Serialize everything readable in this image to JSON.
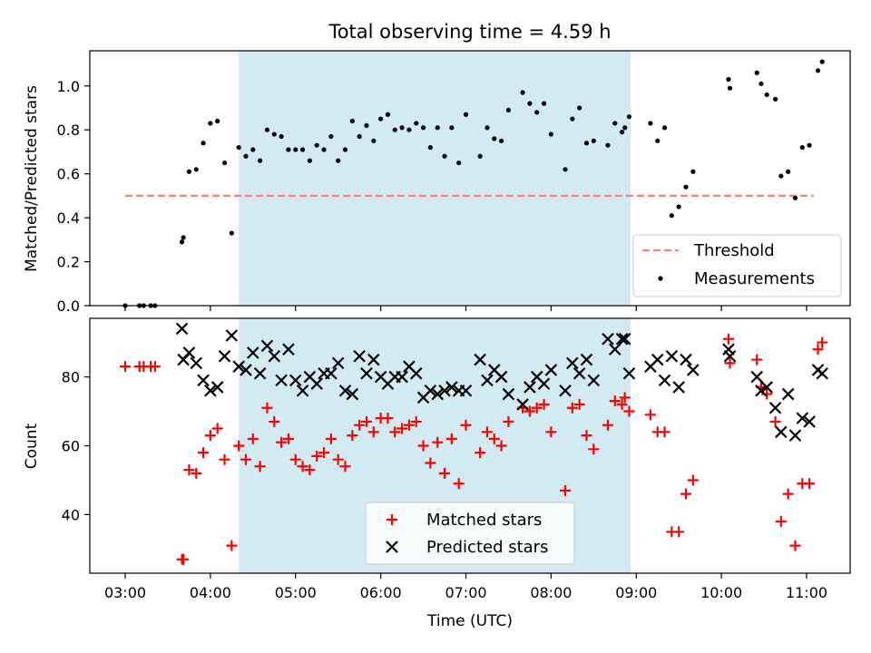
{
  "chart_data": [
    {
      "type": "scatter",
      "title": "Total observing time = 4.59 h",
      "xlabel": "",
      "ylabel": "Matched/Predicted stars",
      "ylim": [
        0.0,
        1.16
      ],
      "yticks": [
        "0.0",
        "0.2",
        "0.4",
        "0.6",
        "0.8",
        "1.0"
      ],
      "shaded_interval": [
        "04:20",
        "08:56"
      ],
      "shade_color": "#add8e6",
      "legend_position": "lower right",
      "threshold": {
        "name": "Threshold",
        "value": 0.5,
        "x_range": [
          "03:00",
          "11:05"
        ],
        "color": "#ff7f7f"
      },
      "series": [
        {
          "name": "Measurements",
          "color": "#000000",
          "points": [
            [
              "03:00",
              0.0
            ],
            [
              "03:10",
              0.0
            ],
            [
              "03:13",
              0.0
            ],
            [
              "03:18",
              0.0
            ],
            [
              "03:21",
              0.0
            ],
            [
              "03:40",
              0.29
            ],
            [
              "03:41",
              0.31
            ],
            [
              "03:45",
              0.61
            ],
            [
              "03:50",
              0.62
            ],
            [
              "03:55",
              0.74
            ],
            [
              "04:00",
              0.83
            ],
            [
              "04:05",
              0.84
            ],
            [
              "04:10",
              0.65
            ],
            [
              "04:15",
              0.33
            ],
            [
              "04:20",
              0.72
            ],
            [
              "04:25",
              0.68
            ],
            [
              "04:30",
              0.71
            ],
            [
              "04:35",
              0.66
            ],
            [
              "04:40",
              0.8
            ],
            [
              "04:45",
              0.78
            ],
            [
              "04:50",
              0.77
            ],
            [
              "04:55",
              0.71
            ],
            [
              "05:00",
              0.71
            ],
            [
              "05:05",
              0.71
            ],
            [
              "05:10",
              0.66
            ],
            [
              "05:15",
              0.73
            ],
            [
              "05:20",
              0.71
            ],
            [
              "05:25",
              0.77
            ],
            [
              "05:30",
              0.66
            ],
            [
              "05:35",
              0.71
            ],
            [
              "05:40",
              0.84
            ],
            [
              "05:45",
              0.77
            ],
            [
              "05:50",
              0.82
            ],
            [
              "05:55",
              0.75
            ],
            [
              "06:00",
              0.85
            ],
            [
              "06:05",
              0.87
            ],
            [
              "06:10",
              0.8
            ],
            [
              "06:15",
              0.81
            ],
            [
              "06:20",
              0.8
            ],
            [
              "06:25",
              0.83
            ],
            [
              "06:30",
              0.81
            ],
            [
              "06:35",
              0.72
            ],
            [
              "06:40",
              0.81
            ],
            [
              "06:45",
              0.68
            ],
            [
              "06:50",
              0.81
            ],
            [
              "06:55",
              0.65
            ],
            [
              "07:00",
              0.87
            ],
            [
              "07:10",
              0.68
            ],
            [
              "07:15",
              0.81
            ],
            [
              "07:20",
              0.76
            ],
            [
              "07:25",
              0.75
            ],
            [
              "07:30",
              0.89
            ],
            [
              "07:40",
              0.97
            ],
            [
              "07:45",
              0.92
            ],
            [
              "07:50",
              0.88
            ],
            [
              "07:55",
              0.92
            ],
            [
              "08:00",
              0.78
            ],
            [
              "08:10",
              0.62
            ],
            [
              "08:15",
              0.85
            ],
            [
              "08:20",
              0.9
            ],
            [
              "08:25",
              0.74
            ],
            [
              "08:30",
              0.75
            ],
            [
              "08:40",
              0.73
            ],
            [
              "08:45",
              0.83
            ],
            [
              "08:50",
              0.79
            ],
            [
              "08:52",
              0.81
            ],
            [
              "08:55",
              0.86
            ],
            [
              "09:10",
              0.83
            ],
            [
              "09:15",
              0.75
            ],
            [
              "09:20",
              0.81
            ],
            [
              "09:25",
              0.41
            ],
            [
              "09:30",
              0.45
            ],
            [
              "09:35",
              0.54
            ],
            [
              "09:40",
              0.61
            ],
            [
              "10:05",
              1.03
            ],
            [
              "10:06",
              0.99
            ],
            [
              "10:25",
              1.06
            ],
            [
              "10:28",
              1.01
            ],
            [
              "10:32",
              0.96
            ],
            [
              "10:38",
              0.94
            ],
            [
              "10:42",
              0.59
            ],
            [
              "10:47",
              0.61
            ],
            [
              "10:52",
              0.49
            ],
            [
              "10:57",
              0.72
            ],
            [
              "11:02",
              0.73
            ],
            [
              "11:08",
              1.07
            ],
            [
              "11:11",
              1.11
            ]
          ]
        }
      ]
    },
    {
      "type": "scatter",
      "title": "",
      "xlabel": "Time (UTC)",
      "ylabel": "Count",
      "ylim": [
        23,
        97
      ],
      "yticks": [
        "40",
        "60",
        "80"
      ],
      "xticks": [
        "03:00",
        "04:00",
        "05:00",
        "06:00",
        "07:00",
        "08:00",
        "09:00",
        "10:00",
        "11:00"
      ],
      "shaded_interval": [
        "04:20",
        "08:56"
      ],
      "shade_color": "#add8e6",
      "legend_position": "lower center",
      "series": [
        {
          "name": "Matched stars",
          "marker": "plus",
          "color": "#ff0000",
          "points": [
            [
              "03:00",
              83
            ],
            [
              "03:10",
              83
            ],
            [
              "03:13",
              83
            ],
            [
              "03:18",
              83
            ],
            [
              "03:21",
              83
            ],
            [
              "03:40",
              27
            ],
            [
              "03:41",
              27
            ],
            [
              "03:45",
              53
            ],
            [
              "03:50",
              52
            ],
            [
              "03:55",
              58
            ],
            [
              "04:00",
              63
            ],
            [
              "04:05",
              65
            ],
            [
              "04:10",
              56
            ],
            [
              "04:15",
              31
            ],
            [
              "04:20",
              60
            ],
            [
              "04:25",
              56
            ],
            [
              "04:30",
              62
            ],
            [
              "04:35",
              54
            ],
            [
              "04:40",
              71
            ],
            [
              "04:45",
              67
            ],
            [
              "04:50",
              61
            ],
            [
              "04:55",
              62
            ],
            [
              "05:00",
              56
            ],
            [
              "05:05",
              54
            ],
            [
              "05:10",
              53
            ],
            [
              "05:15",
              57
            ],
            [
              "05:20",
              58
            ],
            [
              "05:25",
              62
            ],
            [
              "05:30",
              56
            ],
            [
              "05:35",
              54
            ],
            [
              "05:40",
              63
            ],
            [
              "05:45",
              66
            ],
            [
              "05:50",
              67
            ],
            [
              "05:55",
              64
            ],
            [
              "06:00",
              68
            ],
            [
              "06:05",
              68
            ],
            [
              "06:10",
              64
            ],
            [
              "06:15",
              65
            ],
            [
              "06:20",
              66
            ],
            [
              "06:25",
              67
            ],
            [
              "06:30",
              60
            ],
            [
              "06:35",
              55
            ],
            [
              "06:40",
              61
            ],
            [
              "06:45",
              52
            ],
            [
              "06:50",
              62
            ],
            [
              "06:55",
              49
            ],
            [
              "07:00",
              66
            ],
            [
              "07:10",
              58
            ],
            [
              "07:15",
              64
            ],
            [
              "07:20",
              62
            ],
            [
              "07:25",
              60
            ],
            [
              "07:30",
              67
            ],
            [
              "07:40",
              71
            ],
            [
              "07:45",
              70
            ],
            [
              "07:50",
              71
            ],
            [
              "07:55",
              72
            ],
            [
              "08:00",
              64
            ],
            [
              "08:10",
              47
            ],
            [
              "08:15",
              71
            ],
            [
              "08:20",
              72
            ],
            [
              "08:25",
              63
            ],
            [
              "08:30",
              59
            ],
            [
              "08:40",
              66
            ],
            [
              "08:45",
              73
            ],
            [
              "08:50",
              72
            ],
            [
              "08:52",
              74
            ],
            [
              "08:55",
              70
            ],
            [
              "09:10",
              69
            ],
            [
              "09:15",
              64
            ],
            [
              "09:20",
              64
            ],
            [
              "09:25",
              35
            ],
            [
              "09:30",
              35
            ],
            [
              "09:35",
              46
            ],
            [
              "09:40",
              50
            ],
            [
              "10:05",
              91
            ],
            [
              "10:06",
              84
            ],
            [
              "10:25",
              85
            ],
            [
              "10:28",
              77
            ],
            [
              "10:32",
              75
            ],
            [
              "10:38",
              67
            ],
            [
              "10:42",
              38
            ],
            [
              "10:47",
              46
            ],
            [
              "10:52",
              31
            ],
            [
              "10:57",
              49
            ],
            [
              "11:02",
              49
            ],
            [
              "11:08",
              88
            ],
            [
              "11:11",
              90
            ]
          ]
        },
        {
          "name": "Predicted stars",
          "marker": "x",
          "color": "#000000",
          "points": [
            [
              "03:40",
              94
            ],
            [
              "03:41",
              85
            ],
            [
              "03:45",
              87
            ],
            [
              "03:50",
              84
            ],
            [
              "03:55",
              79
            ],
            [
              "04:00",
              76
            ],
            [
              "04:05",
              77
            ],
            [
              "04:10",
              86
            ],
            [
              "04:15",
              92
            ],
            [
              "04:20",
              83
            ],
            [
              "04:25",
              82
            ],
            [
              "04:30",
              87
            ],
            [
              "04:35",
              81
            ],
            [
              "04:40",
              89
            ],
            [
              "04:45",
              86
            ],
            [
              "04:50",
              79
            ],
            [
              "04:55",
              88
            ],
            [
              "05:00",
              79
            ],
            [
              "05:05",
              76
            ],
            [
              "05:10",
              80
            ],
            [
              "05:15",
              78
            ],
            [
              "05:20",
              81
            ],
            [
              "05:25",
              81
            ],
            [
              "05:30",
              84
            ],
            [
              "05:35",
              76
            ],
            [
              "05:40",
              75
            ],
            [
              "05:45",
              86
            ],
            [
              "05:50",
              81
            ],
            [
              "05:55",
              85
            ],
            [
              "06:00",
              80
            ],
            [
              "06:05",
              78
            ],
            [
              "06:10",
              80
            ],
            [
              "06:15",
              80
            ],
            [
              "06:20",
              83
            ],
            [
              "06:25",
              81
            ],
            [
              "06:30",
              74
            ],
            [
              "06:35",
              76
            ],
            [
              "06:40",
              75
            ],
            [
              "06:45",
              76
            ],
            [
              "06:50",
              77
            ],
            [
              "06:55",
              76
            ],
            [
              "07:00",
              76
            ],
            [
              "07:10",
              85
            ],
            [
              "07:15",
              79
            ],
            [
              "07:20",
              82
            ],
            [
              "07:25",
              80
            ],
            [
              "07:30",
              75
            ],
            [
              "07:40",
              72
            ],
            [
              "07:45",
              77
            ],
            [
              "07:50",
              80
            ],
            [
              "07:55",
              78
            ],
            [
              "08:00",
              82
            ],
            [
              "08:10",
              76
            ],
            [
              "08:15",
              84
            ],
            [
              "08:20",
              81
            ],
            [
              "08:25",
              85
            ],
            [
              "08:30",
              79
            ],
            [
              "08:40",
              91
            ],
            [
              "08:45",
              88
            ],
            [
              "08:50",
              91
            ],
            [
              "08:52",
              91
            ],
            [
              "08:55",
              81
            ],
            [
              "09:10",
              83
            ],
            [
              "09:15",
              85
            ],
            [
              "09:20",
              79
            ],
            [
              "09:25",
              86
            ],
            [
              "09:30",
              77
            ],
            [
              "09:35",
              85
            ],
            [
              "09:40",
              82
            ],
            [
              "10:05",
              88
            ],
            [
              "10:06",
              86
            ],
            [
              "10:25",
              80
            ],
            [
              "10:28",
              76
            ],
            [
              "10:32",
              77
            ],
            [
              "10:38",
              71
            ],
            [
              "10:42",
              64
            ],
            [
              "10:47",
              75
            ],
            [
              "10:52",
              63
            ],
            [
              "10:57",
              68
            ],
            [
              "11:02",
              67
            ],
            [
              "11:08",
              82
            ],
            [
              "11:11",
              81
            ]
          ]
        }
      ]
    }
  ]
}
